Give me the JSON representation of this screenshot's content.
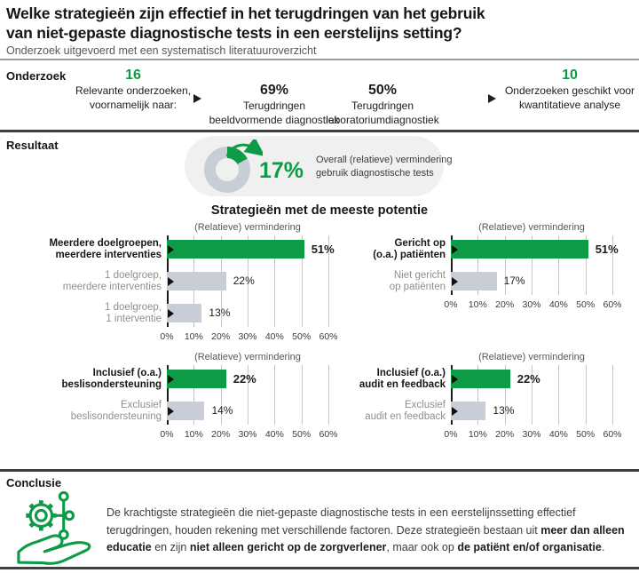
{
  "header": {
    "title_lines": [
      "Welke strategieën zijn effectief in het terugdringen van het gebruik",
      "van niet-gepaste diagnostische tests in een eerstelijns setting?"
    ],
    "subtitle": "Onderzoek uitgevoerd met een systematisch literatuuroverzicht"
  },
  "onderzoek": {
    "label": "Onderzoek",
    "steps": [
      {
        "value": "16",
        "highlight": true,
        "lines": [
          "Relevante onderzoeken,",
          "voornamelijk naar:"
        ]
      },
      {
        "value": "69%",
        "highlight": false,
        "lines": [
          "Terugdringen",
          "beeldvormende diagnostiek"
        ]
      },
      {
        "value": "50%",
        "highlight": false,
        "lines": [
          "Terugdringen",
          "laboratoriumdiagnostiek"
        ]
      },
      {
        "value": "10",
        "highlight": true,
        "lines": [
          "Onderzoeken geschikt voor",
          "kwantitatieve analyse"
        ]
      }
    ]
  },
  "resultaat": {
    "label": "Resultaat"
  },
  "charts_section_title": "Strategieën met de meeste potentie",
  "chart_data": [
    {
      "type": "donut",
      "percent": 17,
      "display": "17%",
      "caption_lines": [
        "Overall (relatieve) vermindering",
        "gebruik diagnostische tests"
      ],
      "caption": "Overall (relatieve) vermindering gebruik diagnostische tests"
    },
    {
      "type": "bar",
      "orientation": "horizontal",
      "title": "(Relatieve) vermindering",
      "xlim": [
        0,
        60
      ],
      "x_ticks": [
        "0%",
        "10%",
        "20%",
        "30%",
        "40%",
        "50%",
        "60%"
      ],
      "bars": [
        {
          "label_lines": [
            "Meerdere doelgroepen,",
            "meerdere interventies"
          ],
          "value": 51,
          "display": "51%",
          "highlight": true
        },
        {
          "label_lines": [
            "1 doelgroep,",
            "meerdere interventies"
          ],
          "value": 22,
          "display": "22%",
          "highlight": false
        },
        {
          "label_lines": [
            "1 doelgroep,",
            "1 interventie"
          ],
          "value": 13,
          "display": "13%",
          "highlight": false
        }
      ]
    },
    {
      "type": "bar",
      "orientation": "horizontal",
      "title": "(Relatieve) vermindering",
      "xlim": [
        0,
        60
      ],
      "x_ticks": [
        "0%",
        "10%",
        "20%",
        "30%",
        "40%",
        "50%",
        "60%"
      ],
      "bars": [
        {
          "label_lines": [
            "Gericht op",
            "(o.a.) patiënten"
          ],
          "value": 51,
          "display": "51%",
          "highlight": true
        },
        {
          "label_lines": [
            "Niet gericht",
            "op patiënten"
          ],
          "value": 17,
          "display": "17%",
          "highlight": false
        }
      ]
    },
    {
      "type": "bar",
      "orientation": "horizontal",
      "title": "(Relatieve) vermindering",
      "xlim": [
        0,
        60
      ],
      "x_ticks": [
        "0%",
        "10%",
        "20%",
        "30%",
        "40%",
        "50%",
        "60%"
      ],
      "bars": [
        {
          "label_lines": [
            "Inclusief (o.a.)",
            "beslisondersteuning"
          ],
          "value": 22,
          "display": "22%",
          "highlight": true
        },
        {
          "label_lines": [
            "Exclusief",
            "beslisondersteuning"
          ],
          "value": 14,
          "display": "14%",
          "highlight": false
        }
      ]
    },
    {
      "type": "bar",
      "orientation": "horizontal",
      "title": "(Relatieve) vermindering",
      "xlim": [
        0,
        60
      ],
      "x_ticks": [
        "0%",
        "10%",
        "20%",
        "30%",
        "40%",
        "50%",
        "60%"
      ],
      "bars": [
        {
          "label_lines": [
            "Inclusief (o.a.)",
            "audit en feedback"
          ],
          "value": 22,
          "display": "22%",
          "highlight": true
        },
        {
          "label_lines": [
            "Exclusief",
            "audit en feedback"
          ],
          "value": 13,
          "display": "13%",
          "highlight": false
        }
      ]
    }
  ],
  "conclusie": {
    "label": "Conclusie",
    "icon": "hand-holding-gear-network-icon",
    "text_segments": [
      {
        "text": "De krachtigste strategieën die niet-gepaste diagnostische tests in een eerstelijnssetting effectief terugdringen, houden rekening met verschillende factoren. Deze strategieën bestaan uit ",
        "bold": false
      },
      {
        "text": "meer dan alleen educatie",
        "bold": true
      },
      {
        "text": " en zijn ",
        "bold": false
      },
      {
        "text": "niet alleen gericht op de zorgverlener",
        "bold": true
      },
      {
        "text": ", maar ook op ",
        "bold": false
      },
      {
        "text": "de patiënt en/of organisatie",
        "bold": true
      },
      {
        "text": ".",
        "bold": false
      }
    ]
  },
  "colors": {
    "green": "#0d9b48",
    "bar_gray": "#c9cdd5",
    "pill_bg": "#f0f0f1",
    "text_dark": "#1d1d1b",
    "text_gray": "#575756",
    "muted_label": "#8f8f8f",
    "divider_dark": "#3f3f3e",
    "divider_gray": "#9c9c9c"
  }
}
